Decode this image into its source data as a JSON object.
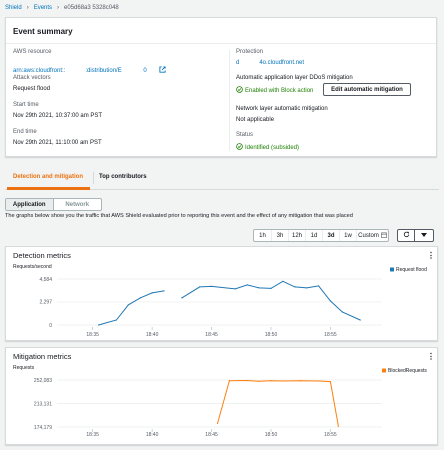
{
  "breadcrumb": {
    "items": [
      "Shield",
      "Events"
    ],
    "current": "e05d68a3                    5328c048"
  },
  "summary": {
    "title": "Event summary",
    "aws_resource_label": "AWS resource",
    "aws_resource_value": "arn:aws:cloudfront::            :distribution/E             0",
    "attack_vectors_label": "Attack vectors",
    "attack_vectors_value": "Request flood",
    "start_label": "Start time",
    "start_value": "Nov 29th 2021, 10:37:00 am PST",
    "end_label": "End time",
    "end_value": "Nov 29th 2021, 11:10:00 am PST",
    "protection_label": "Protection",
    "protection_value": "d            4o.cloudfront.net",
    "app_ddos_label": "Automatic application layer DDoS mitigation",
    "app_ddos_status": "Enabled with Block action",
    "edit_button": "Edit automatic mitigation",
    "network_label": "Network layer automatic mitigation",
    "network_value": "Not applicable",
    "status_label": "Status",
    "status_value": "Identified (subsided)"
  },
  "tabs": [
    "Detection and mitigation",
    "Top contributors"
  ],
  "subtabs": [
    "Application",
    "Network"
  ],
  "description": "The graphs below show you the traffic that AWS Shield evaluated prior to reporting this event and the effect of any mitigation that was placed",
  "range": [
    "1h",
    "3h",
    "12h",
    "1d",
    "3d",
    "1w",
    "Custom"
  ],
  "range_selected": "3d",
  "colors": {
    "detection": "#1f77b4",
    "mitigation": "#ff7f0e",
    "accent": "#ec7211",
    "link": "#0073bb"
  },
  "chart_data": [
    {
      "type": "line",
      "title": "Detection metrics",
      "ylabel": "Requests/second",
      "ylim": [
        0,
        4584
      ],
      "yticks": [
        "4,584",
        "2,297",
        "0"
      ],
      "ytick_values": [
        4584,
        2297,
        0
      ],
      "xticks": [
        "18:35",
        "18:40",
        "18:45",
        "18:50",
        "18:55"
      ],
      "series": [
        {
          "name": "Request flood",
          "segments": [
            [
              [
                "18:35:30",
                0
              ],
              [
                "18:37:00",
                500
              ],
              [
                "18:38:00",
                2000
              ],
              [
                "18:39:00",
                2700
              ],
              [
                "18:40:00",
                3200
              ],
              [
                "18:41:00",
                3400
              ]
            ],
            [
              [
                "18:42:30",
                2700
              ],
              [
                "18:44:00",
                3800
              ],
              [
                "18:45:00",
                3850
              ],
              [
                "18:47:00",
                3600
              ],
              [
                "18:48:00",
                4000
              ],
              [
                "18:49:00",
                3700
              ],
              [
                "18:50:00",
                3650
              ],
              [
                "18:51:00",
                4350
              ],
              [
                "18:52:00",
                3800
              ],
              [
                "18:53:00",
                3700
              ],
              [
                "18:54:00",
                3900
              ],
              [
                "18:55:00",
                2400
              ],
              [
                "18:56:00",
                1300
              ],
              [
                "18:57:30",
                500
              ]
            ]
          ]
        }
      ]
    },
    {
      "type": "line",
      "title": "Mitigation metrics",
      "ylabel": "Requests",
      "ylim": [
        174179,
        252083
      ],
      "yticks": [
        "252,083",
        "213,131",
        "174,179"
      ],
      "ytick_values": [
        252083,
        213131,
        174179
      ],
      "xticks": [
        "18:35",
        "18:40",
        "18:45",
        "18:50",
        "18:55"
      ],
      "series": [
        {
          "name": "BlockedRequests",
          "segments": [
            [
              [
                "18:45:30",
                180000
              ],
              [
                "18:46:30",
                251000
              ],
              [
                "18:48:00",
                251200
              ],
              [
                "18:49:00",
                250000
              ],
              [
                "18:50:00",
                251000
              ],
              [
                "18:51:00",
                250500
              ],
              [
                "18:52:30",
                251000
              ],
              [
                "18:54:00",
                250500
              ],
              [
                "18:55:00",
                249500
              ],
              [
                "18:55:40",
                175500
              ]
            ]
          ]
        }
      ]
    }
  ]
}
